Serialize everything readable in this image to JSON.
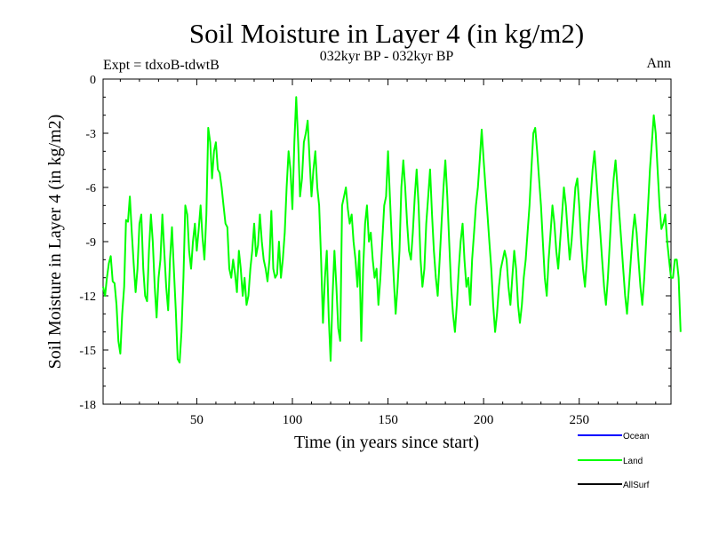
{
  "chart_data": {
    "type": "line",
    "title": "Soil Moisture in Layer 4 (in kg/m2)",
    "subtitle": "032kyr BP - 032kyr BP",
    "experiment_label": "Expt = tdxoB-tdwtB",
    "period_label": "Ann",
    "xlabel": "Time (in years since start)",
    "ylabel": "Soil Moisture in Layer 4 (in kg/m2)",
    "xlim": [
      1,
      298
    ],
    "ylim": [
      -18,
      0
    ],
    "x_ticks": [
      50,
      100,
      150,
      200,
      250
    ],
    "y_ticks": [
      0,
      -3,
      -6,
      -9,
      -12,
      -15,
      -18
    ],
    "y_tick_labels": [
      "0",
      "-3",
      "-6",
      "-9",
      "-12",
      "-15",
      "-18"
    ],
    "grid": false,
    "legend_position": "bottom-right",
    "legend": [
      {
        "name": "Ocean",
        "color": "#0000ff"
      },
      {
        "name": "Land",
        "color": "#00ff00"
      },
      {
        "name": "AllSurf",
        "color": "#000000"
      }
    ],
    "series": [
      {
        "name": "Land",
        "color": "#00ff00",
        "x_start": 1,
        "x_step": 1,
        "values": [
          -11.5,
          -12,
          -11,
          -10.2,
          -9.8,
          -11.2,
          -11.3,
          -12.5,
          -14.5,
          -15.2,
          -13,
          -11.5,
          -7.8,
          -7.9,
          -6.5,
          -8.5,
          -10.2,
          -11.8,
          -10.5,
          -8,
          -7.5,
          -10.5,
          -12,
          -12.3,
          -9.5,
          -7.5,
          -9,
          -11.5,
          -13.2,
          -11,
          -10,
          -7.5,
          -9.5,
          -11.5,
          -12.8,
          -10,
          -8.2,
          -10.5,
          -12.8,
          -15.5,
          -15.7,
          -14,
          -11,
          -7,
          -7.5,
          -9.5,
          -10.5,
          -9,
          -8,
          -9.5,
          -8.3,
          -7,
          -8.8,
          -10,
          -7.5,
          -2.7,
          -3.5,
          -5.5,
          -4,
          -3.5,
          -5,
          -5.2,
          -6,
          -7,
          -8,
          -8.2,
          -10.5,
          -11,
          -10,
          -10.8,
          -11.8,
          -9.5,
          -10.5,
          -12,
          -11,
          -12.5,
          -12,
          -10.5,
          -9.5,
          -8,
          -9.8,
          -9.2,
          -7.5,
          -9,
          -10,
          -10.5,
          -11.2,
          -10,
          -7.3,
          -10.5,
          -11,
          -10.8,
          -9,
          -11,
          -10,
          -8.5,
          -6,
          -4,
          -5,
          -7.2,
          -3.5,
          -1,
          -3.5,
          -6.5,
          -5.5,
          -3.5,
          -3,
          -2.3,
          -4.5,
          -6.5,
          -5,
          -4,
          -6,
          -7,
          -10,
          -13.5,
          -11,
          -9.5,
          -13.2,
          -15.6,
          -12,
          -9.5,
          -11.5,
          -13.8,
          -14.5,
          -7,
          -6.5,
          -6,
          -7.2,
          -8,
          -7.5,
          -9,
          -10,
          -11.5,
          -9.5,
          -14.5,
          -10.5,
          -8,
          -7,
          -9,
          -8.5,
          -10,
          -11,
          -10.5,
          -12.5,
          -11,
          -9,
          -7,
          -6.5,
          -4,
          -6.5,
          -9,
          -11,
          -13,
          -11.5,
          -9.5,
          -6,
          -4.5,
          -6,
          -8,
          -9.5,
          -10,
          -8.5,
          -6.5,
          -5,
          -7,
          -10,
          -11.5,
          -10.5,
          -8,
          -6.5,
          -5,
          -7.5,
          -9.5,
          -11,
          -12,
          -10,
          -8,
          -6,
          -4.5,
          -6.5,
          -9,
          -11.5,
          -13,
          -14,
          -12.5,
          -10.5,
          -9,
          -8,
          -10,
          -11.5,
          -11,
          -12.5,
          -10,
          -8.5,
          -7,
          -6,
          -4.5,
          -2.8,
          -4.5,
          -6,
          -7.5,
          -9,
          -10.5,
          -12.5,
          -14,
          -13,
          -11.5,
          -10.5,
          -10,
          -9.5,
          -10,
          -11.5,
          -12.5,
          -11,
          -9.5,
          -10.5,
          -12.5,
          -13.5,
          -12.5,
          -11,
          -10,
          -8.5,
          -7,
          -5,
          -3,
          -2.7,
          -4,
          -5.5,
          -7,
          -9,
          -11,
          -12,
          -10,
          -8.5,
          -7,
          -8,
          -9.5,
          -10.5,
          -9,
          -7.5,
          -6,
          -7,
          -8.5,
          -10,
          -9,
          -7.5,
          -6,
          -5.5,
          -7,
          -9,
          -10.5,
          -11.5,
          -10,
          -8,
          -6.5,
          -5,
          -4,
          -5.5,
          -7,
          -8.5,
          -10,
          -11.5,
          -12.5,
          -11,
          -9,
          -7,
          -5.5,
          -4.5,
          -6,
          -7.5,
          -9,
          -10.5,
          -12,
          -13,
          -11.5,
          -10,
          -8.5,
          -7.5,
          -8.5,
          -10,
          -11.5,
          -12.5,
          -11,
          -9,
          -7,
          -5,
          -3.5,
          -2,
          -3,
          -5,
          -7,
          -8.3,
          -8,
          -7.5,
          -9,
          -10,
          -11,
          -11,
          -10,
          -10,
          -11,
          -14
        ]
      }
    ]
  }
}
